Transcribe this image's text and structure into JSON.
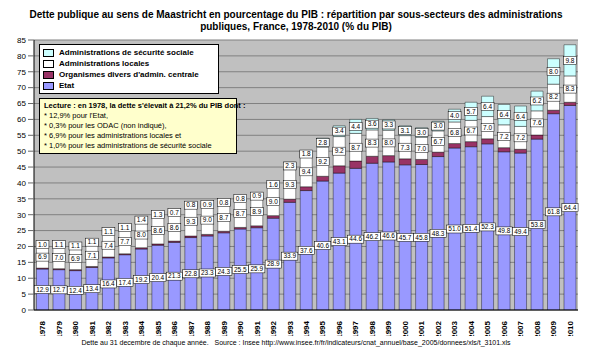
{
  "chart_data": {
    "type": "bar",
    "stacked": true,
    "grid": true,
    "legend": "upper left",
    "title": "Dette publique au sens de Maastricht en pourcentage du PIB : répartition par sous-secteurs des administrations publiques, France, 1978-2010 (% du PIB)",
    "annotation": [
      "Lecture : en 1978, la dette s'élevait à 21,2% du PIB dont :",
      "* 12,9% pour l'Etat,",
      "* 0,3% pour les ODAC (non indiqué),",
      "* 6,9% pour les administrations  locales et",
      "* 1,0% pour les administrations de sécurité sociale"
    ],
    "footnote": "Dette au 31 decembre de chaque année.   Source : Insee http://www.insee.fr/fr/indicateurs/cnat_annuel/base_2005/donnees/xls/t_3101.xls",
    "categories": [
      "1978",
      "1979",
      "1980",
      "1981",
      "1982",
      "1983",
      "1984",
      "1985",
      "1986",
      "1987",
      "1988",
      "1989",
      "1990",
      "1991",
      "1992",
      "1993",
      "1994",
      "1995",
      "1996",
      "1997",
      "1998",
      "1999",
      "2000",
      "2001",
      "2002",
      "2003",
      "2004",
      "2005",
      "2006",
      "2007",
      "2008",
      "2009",
      "2010"
    ],
    "ylim": [
      0,
      85
    ],
    "yticks": [
      0,
      5,
      10,
      15,
      20,
      25,
      30,
      35,
      40,
      45,
      50,
      55,
      60,
      65,
      70,
      75,
      80,
      85
    ],
    "series": [
      {
        "name": "Etat",
        "color": "#9999ff",
        "data_labels": true,
        "values": [
          12.9,
          12.7,
          12.4,
          13.4,
          16.4,
          17.4,
          19.2,
          20.4,
          21.3,
          22.8,
          23.3,
          24.3,
          25.5,
          25.9,
          28.9,
          33.9,
          37.6,
          40.6,
          43.1,
          44.6,
          46.2,
          46.6,
          45.7,
          45.8,
          48.3,
          51.0,
          51.4,
          52.3,
          49.8,
          49.4,
          53.8,
          61.8,
          64.4
        ],
        "value_labels": [
          "12.9",
          "12.7",
          "12.4",
          "13.4",
          "16.4",
          "17.4",
          "19.2",
          "20.4",
          "21.3",
          "22.8",
          "23.3",
          "24.3",
          "25.5",
          "25.9",
          "28.9",
          "33.9",
          "37.6",
          "40.6",
          "43.1",
          "44.6",
          "46.2",
          "46.6",
          "45.7",
          "45.8",
          "48.3",
          "51.0",
          "51.4",
          "52.3",
          "49.8",
          "49.4",
          "53.8",
          "61.8",
          "64.4"
        ]
      },
      {
        "name": "Organismes divers d'admin. centrale",
        "color": "#993366",
        "data_labels": false,
        "values": [
          0.3,
          0.3,
          0.3,
          0.3,
          0.3,
          0.3,
          0.4,
          0.4,
          0.4,
          0.5,
          0.5,
          0.5,
          0.5,
          0.6,
          0.8,
          1.0,
          1.2,
          1.5,
          2.3,
          2.3,
          2.2,
          2.0,
          1.9,
          1.6,
          1.4,
          1.4,
          1.6,
          1.6,
          1.3,
          1.2,
          1.3,
          1.1,
          1.0
        ]
      },
      {
        "name": "Administrations locales",
        "color": "#ffffff",
        "data_labels": true,
        "values": [
          6.9,
          7.0,
          6.9,
          7.1,
          7.4,
          7.7,
          8.0,
          8.6,
          8.6,
          9.3,
          9.0,
          8.7,
          8.7,
          8.9,
          9.0,
          9.3,
          9.4,
          9.2,
          9.2,
          8.7,
          8.3,
          8.0,
          7.3,
          7.0,
          6.7,
          6.8,
          6.7,
          7.0,
          7.2,
          7.2,
          7.6,
          8.2,
          8.3
        ],
        "value_labels": [
          "6.9",
          "7.0",
          "6.9",
          "7.1",
          "7.4",
          "7.7",
          "8.0",
          "8.6",
          "8.6",
          "9.3",
          "9.0",
          "8.7",
          "8.7",
          "8.9",
          "9.0",
          "9.3",
          "9.4",
          "9.2",
          "9.2",
          "8.7",
          "8.3",
          "8.0",
          "7.3",
          "7.0",
          "6.7",
          "6.8",
          "6.7",
          "7.0",
          "7.2",
          "7.2",
          "7.6",
          "8.2",
          "8.3"
        ]
      },
      {
        "name": "Administrations de sécurité sociale",
        "color": "#ccffff",
        "data_labels": true,
        "values": [
          1.0,
          1.1,
          1.1,
          1.1,
          1.1,
          1.1,
          1.4,
          1.3,
          0.7,
          0.8,
          0.9,
          0.8,
          0.8,
          0.9,
          1.6,
          2.3,
          1.8,
          2.8,
          3.4,
          4.4,
          3.6,
          3.3,
          3.1,
          3.0,
          3.0,
          4.0,
          5.7,
          6.4,
          6.4,
          6.4,
          6.2,
          8.0,
          9.8
        ],
        "value_labels": [
          "1.0",
          "1.1",
          "1.1",
          "1.1",
          "1.1",
          "1.1",
          "1.4",
          "1.3",
          "0.7",
          "0.8",
          "0.9",
          "0.8",
          "0.8",
          "0.9",
          "1.6",
          "2.3",
          "1.8",
          "2.8",
          "3.4",
          "4.4",
          "3.6",
          "3.3",
          "3.1",
          "3.0",
          "3.0",
          "4.0",
          "5.7",
          "6.4",
          "6.4",
          "6.4",
          "6.2",
          "8.0",
          "9.8"
        ]
      }
    ]
  }
}
